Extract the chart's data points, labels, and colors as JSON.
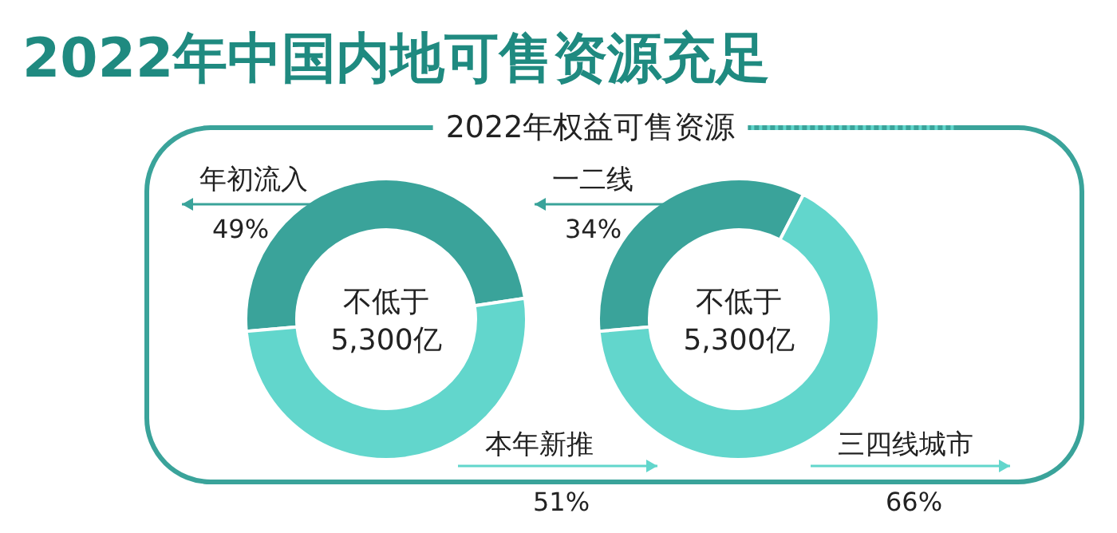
{
  "chart_data": [
    {
      "type": "donut",
      "title": "2022年中国内地可售资源充足",
      "subtitle": "2022年权益可售资源",
      "categories": [
        "年初流入",
        "本年新推"
      ],
      "values": [
        49,
        51
      ],
      "colors": [
        "#3aa39a",
        "#62d6cc"
      ],
      "value_labels": [
        "49%",
        "51%"
      ],
      "annotations": [
        "不低于",
        "5,300亿"
      ]
    },
    {
      "type": "donut",
      "categories": [
        "一二线",
        "三四线城市"
      ],
      "values": [
        34,
        66
      ],
      "colors": [
        "#3aa39a",
        "#62d6cc"
      ],
      "value_labels": [
        "34%",
        "66%"
      ],
      "annotations": [
        "不低于",
        "5,300亿"
      ]
    }
  ]
}
